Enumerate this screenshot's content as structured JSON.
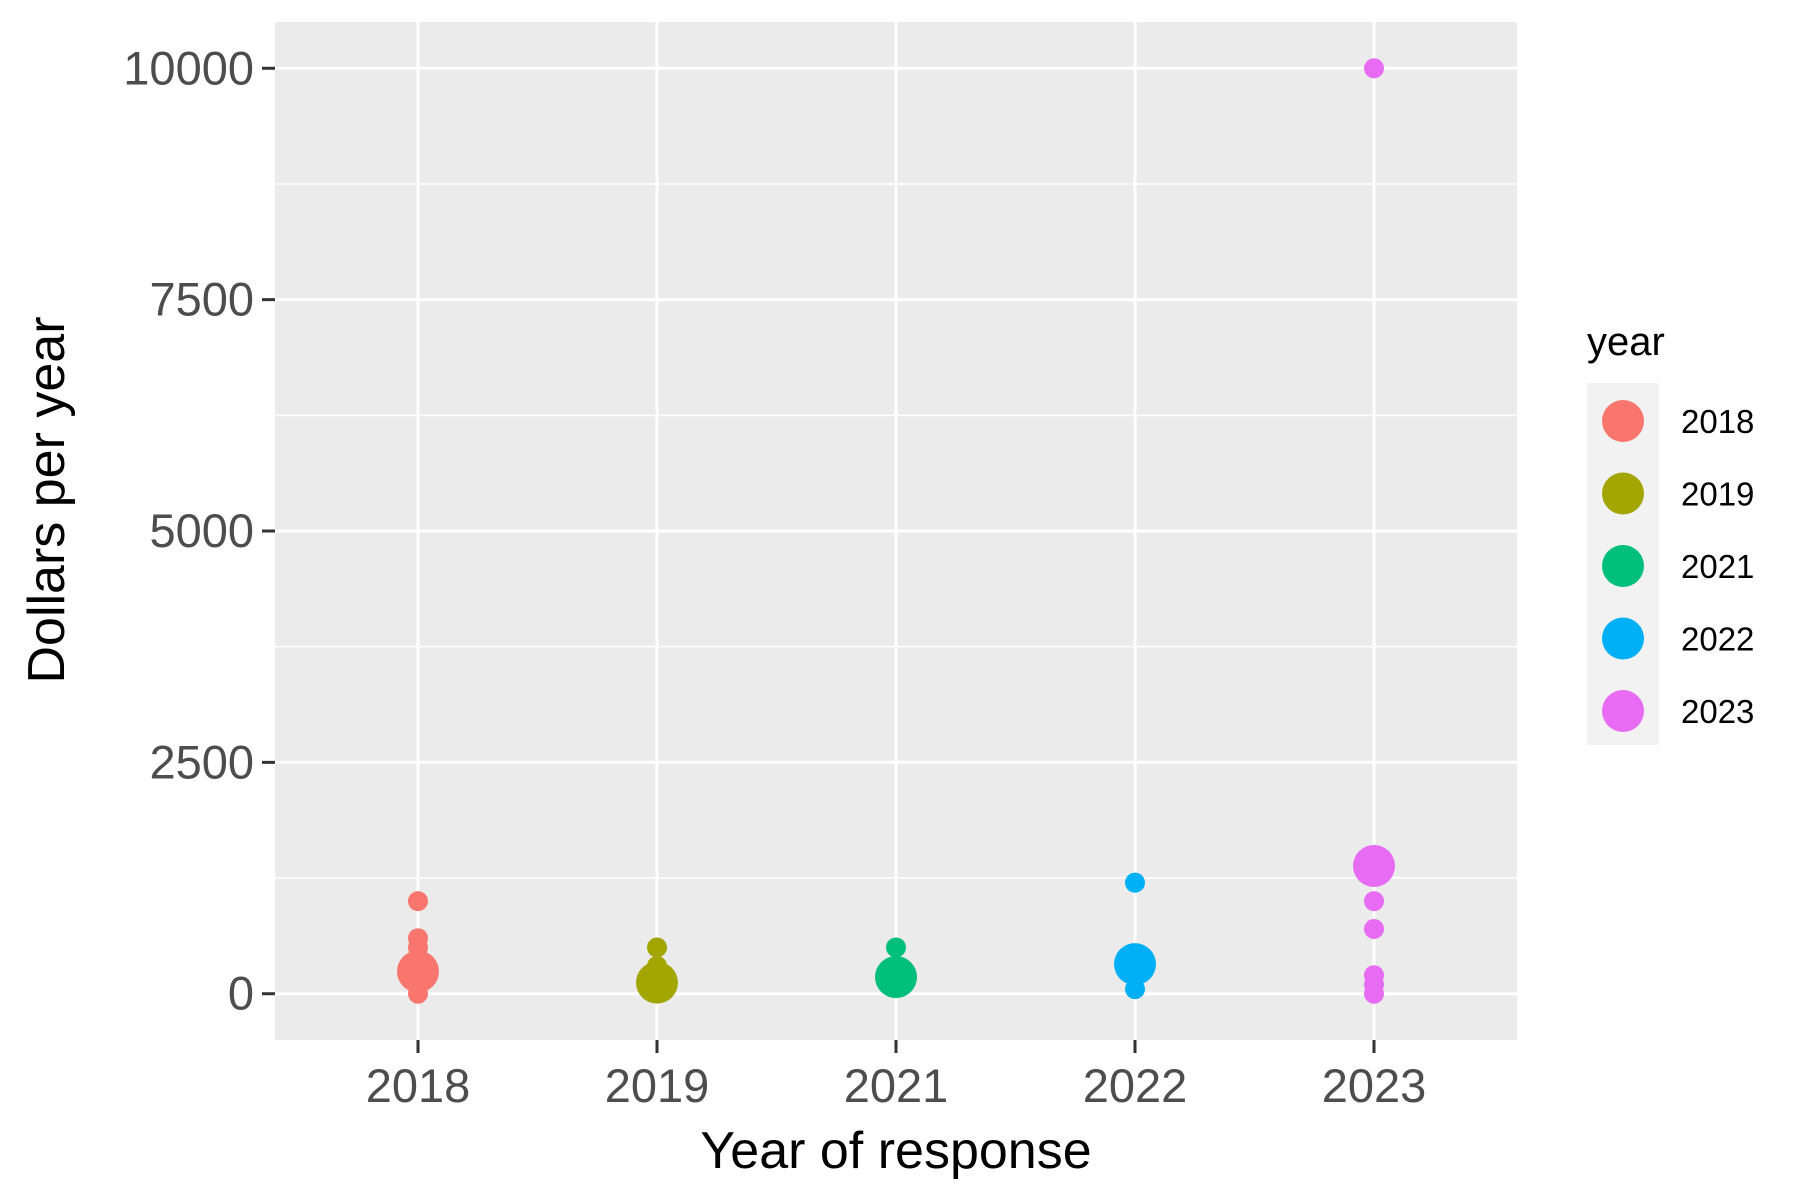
{
  "chart_data": {
    "type": "scatter",
    "xlabel": "Year of response",
    "ylabel": "Dollars per year",
    "categories": [
      "2018",
      "2019",
      "2021",
      "2022",
      "2023"
    ],
    "ylim": [
      -500,
      10500
    ],
    "y_ticks": [
      0,
      2500,
      5000,
      7500,
      10000
    ],
    "y_tick_labels": [
      "0",
      "2500",
      "5000",
      "7500",
      "10000"
    ],
    "grid": true,
    "legend": {
      "title": "year",
      "placement": "right",
      "entries": [
        "2018",
        "2019",
        "2021",
        "2022",
        "2023"
      ]
    },
    "colors": {
      "2018": "#F8766D",
      "2019": "#A3A500",
      "2021": "#00BF7D",
      "2022": "#00B0F6",
      "2023": "#E76BF3"
    },
    "series": [
      {
        "name": "2018",
        "points": [
          {
            "y": 1000,
            "count": 1
          },
          {
            "y": 600,
            "count": 1
          },
          {
            "y": 500,
            "count": 1
          },
          {
            "y": 400,
            "count": 1
          },
          {
            "y": 240,
            "count": 3
          },
          {
            "y": 0,
            "count": 1
          }
        ]
      },
      {
        "name": "2019",
        "points": [
          {
            "y": 500,
            "count": 1
          },
          {
            "y": 300,
            "count": 1
          },
          {
            "y": 120,
            "count": 3
          }
        ]
      },
      {
        "name": "2021",
        "points": [
          {
            "y": 500,
            "count": 1
          },
          {
            "y": 180,
            "count": 3
          },
          {
            "y": 100,
            "count": 1
          }
        ]
      },
      {
        "name": "2022",
        "points": [
          {
            "y": 1200,
            "count": 1
          },
          {
            "y": 320,
            "count": 3
          },
          {
            "y": 50,
            "count": 1
          }
        ]
      },
      {
        "name": "2023",
        "points": [
          {
            "y": 10000,
            "count": 1
          },
          {
            "y": 1380,
            "count": 3
          },
          {
            "y": 1000,
            "count": 1
          },
          {
            "y": 700,
            "count": 1
          },
          {
            "y": 200,
            "count": 1
          },
          {
            "y": 100,
            "count": 1
          },
          {
            "y": 0,
            "count": 1
          }
        ]
      }
    ]
  }
}
